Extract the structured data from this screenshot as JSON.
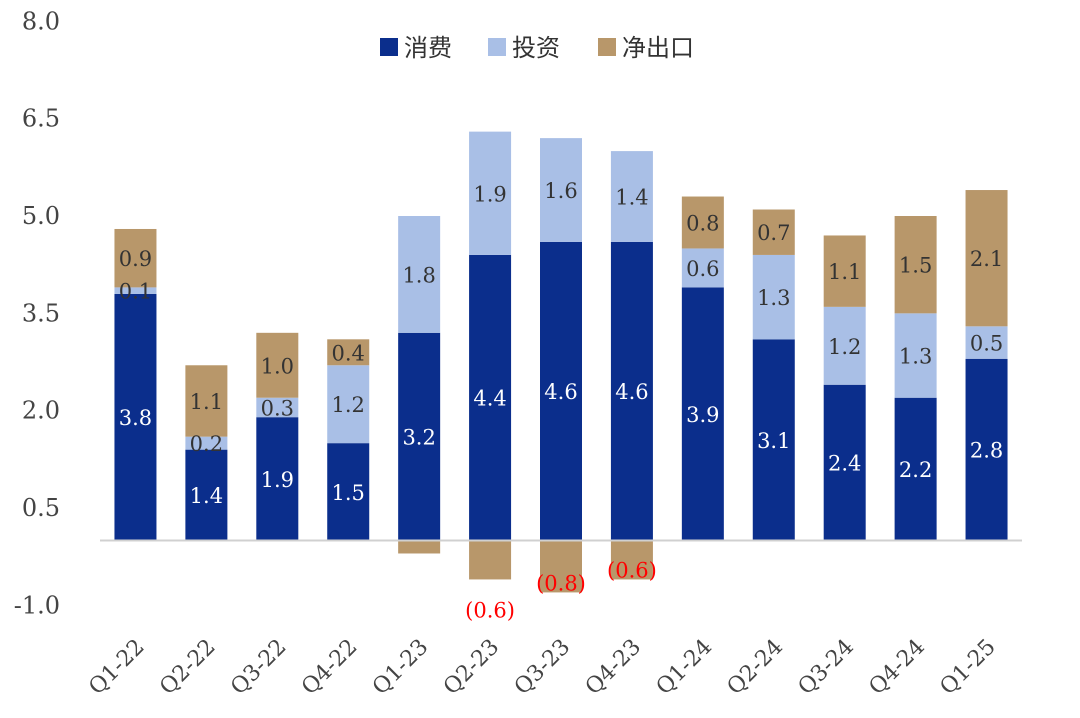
{
  "chart_data": {
    "type": "bar",
    "stacked": true,
    "categories": [
      "Q1-22",
      "Q2-22",
      "Q3-22",
      "Q4-22",
      "Q1-23",
      "Q2-23",
      "Q3-23",
      "Q4-23",
      "Q1-24",
      "Q2-24",
      "Q3-24",
      "Q4-24",
      "Q1-25"
    ],
    "series": [
      {
        "name": "消费",
        "color": "#0b2e8c",
        "values": [
          3.8,
          1.4,
          1.9,
          1.5,
          3.2,
          4.4,
          4.6,
          4.6,
          3.9,
          3.1,
          2.4,
          2.2,
          2.8
        ]
      },
      {
        "name": "投资",
        "color": "#a9bfe6",
        "values": [
          0.1,
          0.2,
          0.3,
          1.2,
          1.8,
          1.9,
          1.6,
          1.4,
          0.6,
          1.3,
          1.2,
          1.3,
          0.5
        ]
      },
      {
        "name": "净出口",
        "color": "#b8976a",
        "values": [
          0.9,
          1.1,
          1.0,
          0.4,
          -0.2,
          -0.6,
          -0.8,
          -0.6,
          0.8,
          0.7,
          1.1,
          1.5,
          2.1
        ]
      }
    ],
    "data_labels": [
      [
        "3.8",
        "1.4",
        "1.9",
        "1.5",
        "3.2",
        "4.4",
        "4.6",
        "4.6",
        "3.9",
        "3.1",
        "2.4",
        "2.2",
        "2.8"
      ],
      [
        "0.1",
        "0.2",
        "0.3",
        "1.2",
        "1.8",
        "1.9",
        "1.6",
        "1.4",
        "0.6",
        "1.3",
        "1.2",
        "1.3",
        "0.5"
      ],
      [
        "0.9",
        "1.1",
        "1.0",
        "0.4",
        "",
        "(0.6)",
        "(0.8)",
        "(0.6)",
        "0.8",
        "0.7",
        "1.1",
        "1.5",
        "2.1"
      ]
    ],
    "y_ticks": [
      "8.0",
      "6.5",
      "5.0",
      "3.5",
      "2.0",
      "0.5",
      "-1.0"
    ],
    "ylim": [
      -1.0,
      8.0
    ],
    "grid": false,
    "legend_position": "top",
    "negative_label_color": "#ff0000",
    "positive_label_colors": [
      "#ffffff",
      "#333333",
      "#333333"
    ]
  }
}
